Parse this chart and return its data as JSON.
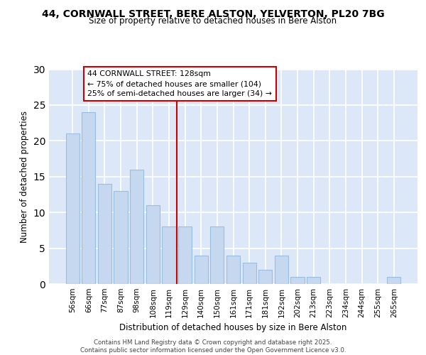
{
  "title_line1": "44, CORNWALL STREET, BERE ALSTON, YELVERTON, PL20 7BG",
  "title_line2": "Size of property relative to detached houses in Bere Alston",
  "xlabel": "Distribution of detached houses by size in Bere Alston",
  "ylabel": "Number of detached properties",
  "categories": [
    "56sqm",
    "66sqm",
    "77sqm",
    "87sqm",
    "98sqm",
    "108sqm",
    "119sqm",
    "129sqm",
    "140sqm",
    "150sqm",
    "161sqm",
    "171sqm",
    "181sqm",
    "192sqm",
    "202sqm",
    "213sqm",
    "223sqm",
    "234sqm",
    "244sqm",
    "255sqm",
    "265sqm"
  ],
  "values": [
    21,
    24,
    14,
    13,
    16,
    11,
    8,
    8,
    4,
    8,
    4,
    3,
    2,
    4,
    1,
    1,
    0,
    0,
    0,
    0,
    1
  ],
  "bar_color": "#c5d8f0",
  "bar_edge_color": "#9bbde0",
  "ylim": [
    0,
    30
  ],
  "yticks": [
    0,
    5,
    10,
    15,
    20,
    25,
    30
  ],
  "annotation_title": "44 CORNWALL STREET: 128sqm",
  "annotation_line2": "← 75% of detached houses are smaller (104)",
  "annotation_line3": "25% of semi-detached houses are larger (34) →",
  "ref_line_bar_index": 7,
  "footer_line1": "Contains HM Land Registry data © Crown copyright and database right 2025.",
  "footer_line2": "Contains public sector information licensed under the Open Government Licence v3.0.",
  "plot_bg_color": "#dce8f8",
  "fig_bg_color": "#ffffff"
}
